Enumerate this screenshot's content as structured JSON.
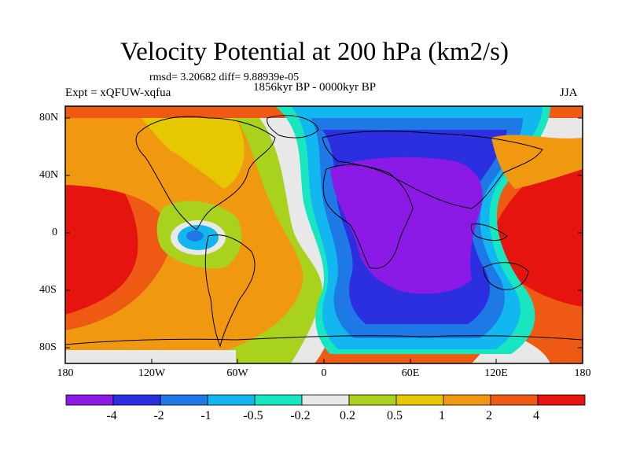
{
  "title": "Velocity Potential at 200 hPa (km2/s)",
  "stats": "rmsd= 3.20682 diff= 9.88939e-05",
  "experiment": "Expt = xQFUW-xqfua",
  "period": "1856kyr BP - 0000kyr BP",
  "season": "JJA",
  "y_ticks": [
    "80N",
    "40N",
    "0",
    "40S",
    "80S"
  ],
  "x_ticks": [
    "180",
    "120W",
    "60W",
    "0",
    "60E",
    "120E",
    "180"
  ],
  "colorbar": {
    "labels": [
      "-4",
      "-2",
      "-1",
      "-0.5",
      "-0.2",
      "0.2",
      "0.5",
      "1",
      "2",
      "4"
    ],
    "colors": [
      "#8B1AE6",
      "#2B2FE0",
      "#1E78E6",
      "#13B7F0",
      "#18E6C0",
      "#E8E8E8",
      "#A8D21C",
      "#E6C800",
      "#F09810",
      "#EE5A14",
      "#E6140E"
    ]
  },
  "colors": {
    "land_outline": "#000000",
    "frame": "#000000"
  }
}
